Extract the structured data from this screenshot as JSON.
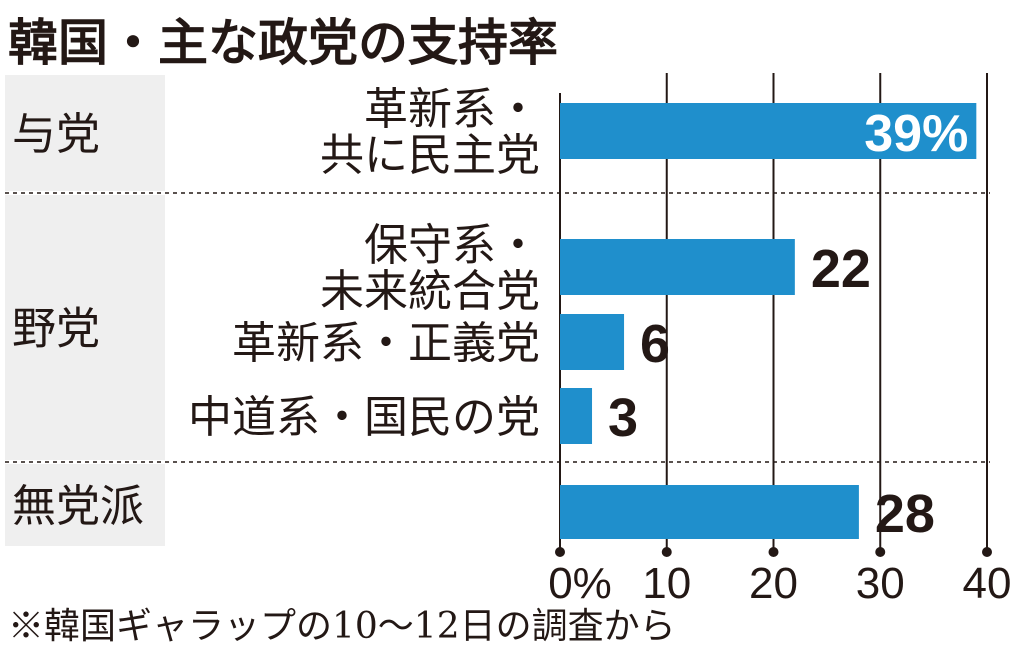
{
  "title": "韓国・主な政党の支持率",
  "footnote": "※韓国ギャラップの10〜12日の調査から",
  "colors": {
    "bar": "#1f8fcc",
    "group_bg": "#efefef",
    "text": "#231815"
  },
  "chart_data": {
    "type": "bar",
    "orientation": "horizontal",
    "groups": [
      {
        "label": "与党",
        "items": [
          0
        ]
      },
      {
        "label": "野党",
        "items": [
          1,
          2,
          3
        ]
      },
      {
        "label": "無党派",
        "items": [
          4
        ]
      }
    ],
    "categories": [
      [
        "革新系・",
        "共に民主党"
      ],
      [
        "保守系・",
        "未来統合党"
      ],
      [
        "革新系・正義党"
      ],
      [
        "中道系・国民の党"
      ],
      [
        ""
      ]
    ],
    "values": [
      39,
      22,
      6,
      3,
      28
    ],
    "value_labels": [
      "39%",
      "22",
      "6",
      "3",
      "28"
    ],
    "xticks": [
      0,
      10,
      20,
      30,
      40
    ],
    "xtick_labels": [
      "0%",
      "10",
      "20",
      "30",
      "40"
    ],
    "xlim": [
      0,
      40
    ],
    "grid": true
  }
}
